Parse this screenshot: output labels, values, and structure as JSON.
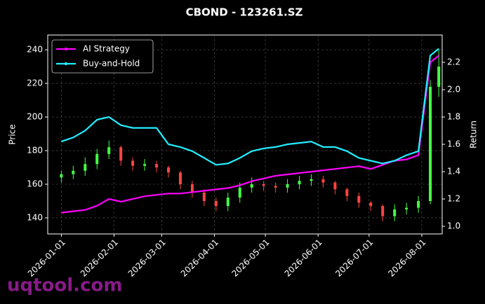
{
  "chart_data": {
    "type": "candlestick",
    "title": "CBOND - 123261.SZ",
    "ylabel": "Price",
    "y2label": "Return",
    "x": [
      "2026-01-01",
      "2026-01-08",
      "2026-01-15",
      "2026-01-22",
      "2026-01-29",
      "2026-02-05",
      "2026-02-12",
      "2026-02-19",
      "2026-02-26",
      "2026-03-05",
      "2026-03-12",
      "2026-03-19",
      "2026-03-26",
      "2026-04-02",
      "2026-04-09",
      "2026-04-16",
      "2026-04-23",
      "2026-04-30",
      "2026-05-07",
      "2026-05-14",
      "2026-05-21",
      "2026-05-28",
      "2026-06-04",
      "2026-06-11",
      "2026-06-18",
      "2026-06-25",
      "2026-07-02",
      "2026-07-09",
      "2026-07-16",
      "2026-07-23",
      "2026-07-30",
      "2026-08-06",
      "2026-08-11"
    ],
    "open": [
      164,
      166,
      168,
      172,
      178,
      182,
      174,
      171,
      172,
      170,
      167,
      160,
      155,
      150,
      147,
      152,
      158,
      160,
      159,
      158,
      160,
      162,
      163,
      161,
      157,
      153,
      149,
      147,
      141,
      145,
      146,
      150,
      218
    ],
    "high": [
      168,
      171,
      176,
      181,
      186,
      183,
      176,
      175,
      174,
      171,
      168,
      162,
      157,
      152,
      155,
      161,
      164,
      162,
      161,
      163,
      165,
      166,
      165,
      162,
      158,
      155,
      150,
      148,
      148,
      149,
      153,
      222,
      240
    ],
    "low": [
      161,
      163,
      165,
      169,
      175,
      171,
      168,
      168,
      167,
      164,
      157,
      152,
      147,
      144,
      144,
      149,
      155,
      156,
      155,
      155,
      157,
      159,
      158,
      154,
      150,
      146,
      144,
      138,
      138,
      142,
      143,
      148,
      212
    ],
    "close": [
      166,
      168,
      172,
      178,
      182,
      174,
      171,
      172,
      170,
      167,
      160,
      155,
      150,
      147,
      152,
      158,
      160,
      159,
      158,
      160,
      162,
      163,
      161,
      157,
      153,
      149,
      147,
      141,
      145,
      146,
      150,
      218,
      230
    ],
    "up_color": "#44ff44",
    "down_color": "#ff4444",
    "series": [
      {
        "name": "AI Strategy",
        "color": "#ff00ff",
        "axis": "y2",
        "values": [
          1.1,
          1.11,
          1.12,
          1.15,
          1.2,
          1.18,
          1.2,
          1.22,
          1.23,
          1.24,
          1.24,
          1.25,
          1.26,
          1.27,
          1.28,
          1.3,
          1.33,
          1.35,
          1.37,
          1.38,
          1.39,
          1.4,
          1.41,
          1.42,
          1.43,
          1.44,
          1.42,
          1.45,
          1.48,
          1.49,
          1.52,
          2.2,
          2.25
        ]
      },
      {
        "name": "Buy-and-Hold",
        "color": "#22eeff",
        "axis": "y2",
        "values": [
          1.62,
          1.65,
          1.7,
          1.78,
          1.8,
          1.74,
          1.72,
          1.72,
          1.72,
          1.6,
          1.58,
          1.55,
          1.5,
          1.45,
          1.46,
          1.5,
          1.55,
          1.57,
          1.58,
          1.6,
          1.61,
          1.62,
          1.58,
          1.58,
          1.55,
          1.5,
          1.48,
          1.46,
          1.48,
          1.52,
          1.55,
          2.25,
          2.3
        ]
      }
    ],
    "ylim": [
      130.4,
      248.8
    ],
    "yticks": [
      140,
      160,
      180,
      200,
      220,
      240
    ],
    "y2lim": [
      0.944,
      2.4
    ],
    "y2ticks": [
      {
        "value": 1.0,
        "label": "1.0"
      },
      {
        "value": 1.2,
        "label": "1.2"
      },
      {
        "value": 1.4,
        "label": "1.4"
      },
      {
        "value": 1.6,
        "label": "1.6"
      },
      {
        "value": 1.8,
        "label": "1.8"
      },
      {
        "value": 2.0,
        "label": "2.0"
      },
      {
        "value": 2.2,
        "label": "2.2"
      }
    ],
    "xticks": [
      "2026-01-01",
      "2026-02-01",
      "2026-03-01",
      "2026-04-01",
      "2026-05-01",
      "2026-06-01",
      "2026-07-01",
      "2026-08-01"
    ],
    "grid": true,
    "legend": "upper left",
    "watermark": "uqtool.com"
  }
}
